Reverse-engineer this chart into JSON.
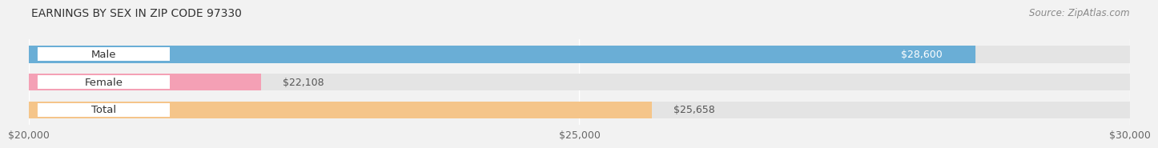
{
  "title": "Earnings by Sex in Zip Code 97330",
  "title_display": "EARNINGS BY SEX IN ZIP CODE 97330",
  "source": "Source: ZipAtlas.com",
  "categories": [
    "Male",
    "Female",
    "Total"
  ],
  "values": [
    28600,
    22108,
    25658
  ],
  "bar_colors": [
    "#6aaed6",
    "#f4a0b5",
    "#f5c58a"
  ],
  "value_labels": [
    "$28,600",
    "$22,108",
    "$25,658"
  ],
  "value_label_colors": [
    "white",
    "#555555",
    "#555555"
  ],
  "value_label_inside": [
    true,
    false,
    false
  ],
  "xmin": 20000,
  "xmax": 30000,
  "xticks": [
    20000,
    25000,
    30000
  ],
  "xtick_labels": [
    "$20,000",
    "$25,000",
    "$30,000"
  ],
  "bg_color": "#f2f2f2",
  "bar_bg_color": "#e4e4e4",
  "title_fontsize": 10,
  "source_fontsize": 8.5,
  "label_fontsize": 9.5,
  "value_fontsize": 9,
  "tick_fontsize": 9,
  "fig_width": 14.06,
  "fig_height": 1.96
}
